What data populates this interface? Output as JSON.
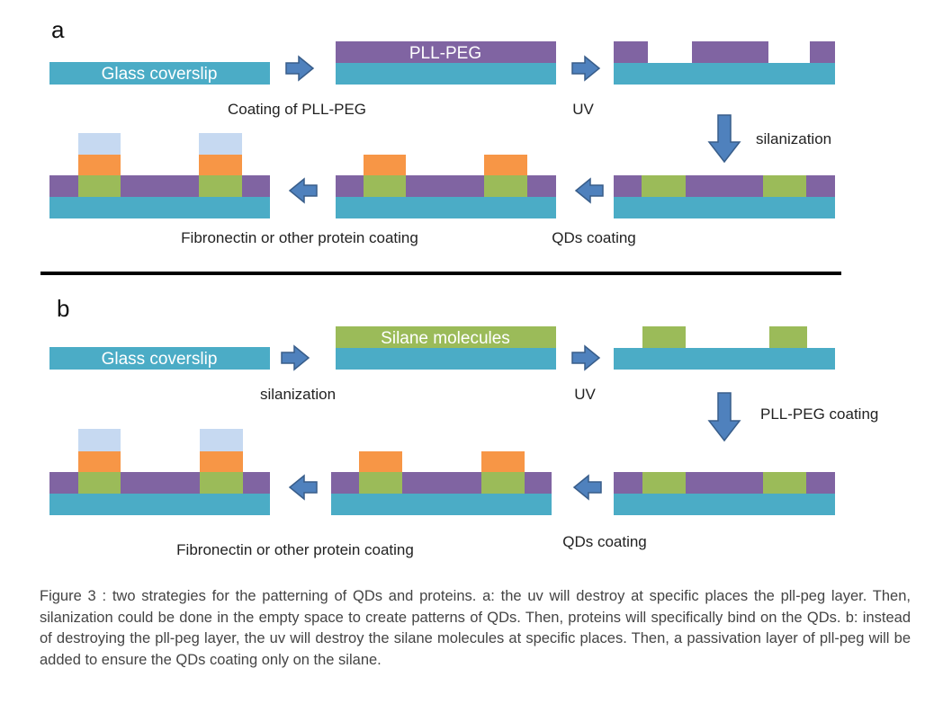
{
  "panel_a": {
    "letter": "a",
    "glass_label": "Glass coverslip",
    "pllpeg_label": "PLL-PEG",
    "step_coating": "Coating of PLL-PEG",
    "step_uv": "UV",
    "step_silanization": "silanization",
    "step_qds": "QDs coating",
    "step_protein": "Fibronectin or other protein coating"
  },
  "panel_b": {
    "letter": "b",
    "glass_label": "Glass coverslip",
    "silane_label": "Silane molecules",
    "step_silanization": "silanization",
    "step_uv": "UV",
    "step_pllpeg": "PLL-PEG coating",
    "step_qds": "QDs coating",
    "step_protein": "Fibronectin or other protein coating"
  },
  "caption": "Figure 3 : two strategies for the patterning of QDs and proteins. a: the uv will destroy at specific places the pll-peg layer. Then, silanization could be done in the empty space to create patterns of QDs. Then, proteins will specifically bind on the QDs. b: instead of destroying the pll-peg layer, the uv will destroy the silane molecules at specific places. Then, a passivation layer of pll-peg will be added to ensure the QDs coating only on the silane.",
  "colors": {
    "glass": "#4bacc6",
    "pllpeg": "#8064a2",
    "silane": "#9bbb59",
    "qds": "#f79646",
    "protein": "#c6d9f1",
    "arrow_fill": "#4f81bd",
    "arrow_stroke": "#385d8a"
  }
}
